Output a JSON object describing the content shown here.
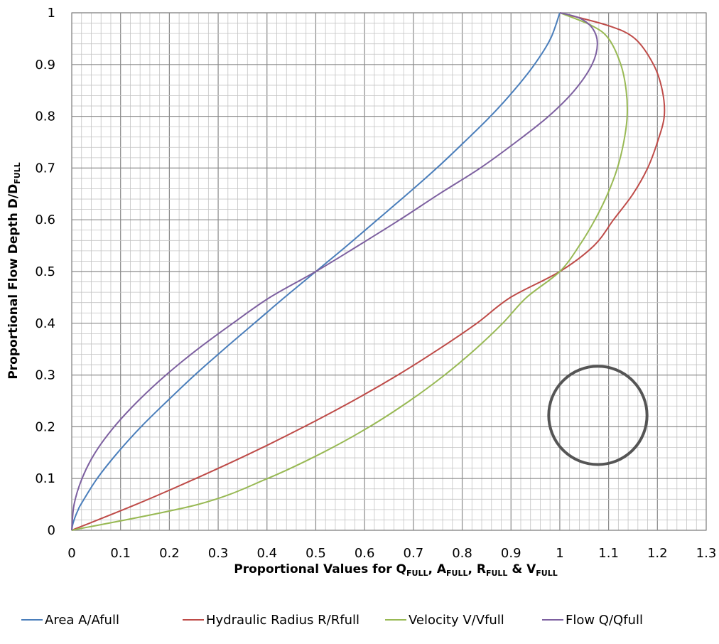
{
  "chart_data": {
    "type": "line",
    "xlabel": {
      "main": "Proportional Values for Q",
      "sub1": "FULL",
      "sep1": ", A",
      "sub2": "FULL",
      "sep2": ", R",
      "sub3": "FULL",
      "sep3": " & V",
      "sub4": "FULL"
    },
    "ylabel": {
      "main": "Proportional Flow Depth D/D",
      "sub": "FULL"
    },
    "xlim": [
      0,
      1.3
    ],
    "ylim": [
      0,
      1
    ],
    "x_ticks": [
      "0",
      "0.1",
      "0.2",
      "0.3",
      "0.4",
      "0.5",
      "0.6",
      "0.7",
      "0.8",
      "0.9",
      "1",
      "1.1",
      "1.2",
      "1.3"
    ],
    "y_ticks": [
      "0",
      "0.1",
      "0.2",
      "0.3",
      "0.4",
      "0.5",
      "0.6",
      "0.7",
      "0.8",
      "0.9",
      "1"
    ],
    "grid": true,
    "legend_position": "bottom",
    "series": [
      {
        "name": "Area A/Afull",
        "color": "#4A7EBB",
        "points": [
          [
            0,
            0
          ],
          [
            0.0017,
            0.01
          ],
          [
            0.0048,
            0.02
          ],
          [
            0.0087,
            0.03
          ],
          [
            0.0134,
            0.04
          ],
          [
            0.0187,
            0.05
          ],
          [
            0.052,
            0.1
          ],
          [
            0.094,
            0.15
          ],
          [
            0.142,
            0.2
          ],
          [
            0.196,
            0.25
          ],
          [
            0.252,
            0.3
          ],
          [
            0.312,
            0.35
          ],
          [
            0.374,
            0.4
          ],
          [
            0.436,
            0.45
          ],
          [
            0.5,
            0.5
          ],
          [
            0.564,
            0.55
          ],
          [
            0.626,
            0.6
          ],
          [
            0.688,
            0.65
          ],
          [
            0.748,
            0.7
          ],
          [
            0.804,
            0.75
          ],
          [
            0.858,
            0.8
          ],
          [
            0.906,
            0.85
          ],
          [
            0.948,
            0.9
          ],
          [
            0.981,
            0.95
          ],
          [
            1.0,
            1.0
          ]
        ]
      },
      {
        "name": "Hydraulic Radius R/Rfull",
        "color": "#BE4B48",
        "points": [
          [
            0,
            0
          ],
          [
            0.132,
            0.05
          ],
          [
            0.254,
            0.1
          ],
          [
            0.369,
            0.15
          ],
          [
            0.476,
            0.2
          ],
          [
            0.576,
            0.25
          ],
          [
            0.668,
            0.3
          ],
          [
            0.752,
            0.35
          ],
          [
            0.83,
            0.4
          ],
          [
            0.899,
            0.45
          ],
          [
            1.0,
            0.5
          ],
          [
            1.07,
            0.55
          ],
          [
            1.11,
            0.6
          ],
          [
            1.15,
            0.65
          ],
          [
            1.18,
            0.7
          ],
          [
            1.2,
            0.75
          ],
          [
            1.214,
            0.8
          ],
          [
            1.21,
            0.85
          ],
          [
            1.192,
            0.9
          ],
          [
            1.154,
            0.95
          ],
          [
            1.1,
            0.975
          ],
          [
            1.0,
            1.0
          ]
        ]
      },
      {
        "name": "Velocity V/Vfull",
        "color": "#98B954",
        "points": [
          [
            0,
            0
          ],
          [
            0.259,
            0.05
          ],
          [
            0.401,
            0.1
          ],
          [
            0.514,
            0.15
          ],
          [
            0.61,
            0.2
          ],
          [
            0.692,
            0.25
          ],
          [
            0.764,
            0.3
          ],
          [
            0.827,
            0.35
          ],
          [
            0.883,
            0.4
          ],
          [
            0.932,
            0.45
          ],
          [
            1.0,
            0.5
          ],
          [
            1.04,
            0.55
          ],
          [
            1.072,
            0.6
          ],
          [
            1.098,
            0.65
          ],
          [
            1.118,
            0.7
          ],
          [
            1.131,
            0.75
          ],
          [
            1.138,
            0.8
          ],
          [
            1.136,
            0.85
          ],
          [
            1.125,
            0.9
          ],
          [
            1.1,
            0.95
          ],
          [
            1.066,
            0.975
          ],
          [
            1.0,
            1.0
          ]
        ]
      },
      {
        "name": "Flow Q/Qfull",
        "color": "#7D60A0",
        "points": [
          [
            0,
            0
          ],
          [
            0.0048,
            0.05
          ],
          [
            0.021,
            0.1
          ],
          [
            0.048,
            0.15
          ],
          [
            0.087,
            0.2
          ],
          [
            0.136,
            0.25
          ],
          [
            0.193,
            0.3
          ],
          [
            0.258,
            0.35
          ],
          [
            0.33,
            0.4
          ],
          [
            0.406,
            0.45
          ],
          [
            0.5,
            0.5
          ],
          [
            0.587,
            0.55
          ],
          [
            0.672,
            0.6
          ],
          [
            0.753,
            0.65
          ],
          [
            0.837,
            0.7
          ],
          [
            0.91,
            0.75
          ],
          [
            0.977,
            0.8
          ],
          [
            1.03,
            0.85
          ],
          [
            1.066,
            0.9
          ],
          [
            1.077,
            0.94
          ],
          [
            1.067,
            0.97
          ],
          [
            1.04,
            0.99
          ],
          [
            1.0,
            1.0
          ]
        ]
      }
    ],
    "annotation": {
      "shape": "circle",
      "color": "#555555",
      "center": [
        1.078,
        0.222
      ],
      "radius_y": 0.095
    }
  }
}
